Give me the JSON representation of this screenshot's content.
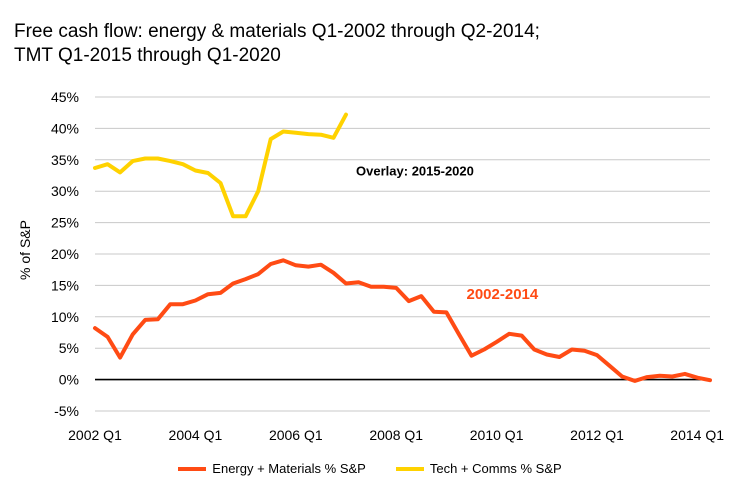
{
  "title_line1": "Free cash flow: energy & materials Q1-2002 through Q2-2014;",
  "title_line2": "TMT Q1-2015 through Q1-2020",
  "chart_data": {
    "type": "line",
    "ylabel": "% of S&P",
    "ylim": [
      -5,
      45
    ],
    "yticks": [
      -5,
      0,
      5,
      10,
      15,
      20,
      25,
      30,
      35,
      40,
      45
    ],
    "ytick_labels": [
      "-5%",
      "0%",
      "5%",
      "10%",
      "15%",
      "20%",
      "25%",
      "30%",
      "35%",
      "40%",
      "45%"
    ],
    "xlim": [
      2002.0,
      2014.25
    ],
    "xticks": [
      2002.0,
      2004.0,
      2006.0,
      2008.0,
      2010.0,
      2012.0,
      2014.0
    ],
    "xtick_labels": [
      "2002 Q1",
      "2004 Q1",
      "2006 Q1",
      "2008 Q1",
      "2010 Q1",
      "2012 Q1",
      "2014 Q1"
    ],
    "grid": "horizontal",
    "legend_position": "bottom",
    "annotations": [
      {
        "text": "Overlay: 2015-2020",
        "x": 2007.2,
        "y": 32.5,
        "color": "#000000"
      },
      {
        "text": "2002-2014",
        "x": 2009.4,
        "y": 12.8,
        "color": "#ff4b14"
      }
    ],
    "series": [
      {
        "name": "Energy + Materials % S&P",
        "color": "#ff4b14",
        "x": [
          2002.0,
          2002.25,
          2002.5,
          2002.75,
          2003.0,
          2003.25,
          2003.5,
          2003.75,
          2004.0,
          2004.25,
          2004.5,
          2004.75,
          2005.0,
          2005.25,
          2005.5,
          2005.75,
          2006.0,
          2006.25,
          2006.5,
          2006.75,
          2007.0,
          2007.25,
          2007.5,
          2007.75,
          2008.0,
          2008.25,
          2008.5,
          2008.75,
          2009.0,
          2009.25,
          2009.5,
          2009.75,
          2010.0,
          2010.25,
          2010.5,
          2010.75,
          2011.0,
          2011.25,
          2011.5,
          2011.75,
          2012.0,
          2012.25,
          2012.5,
          2012.75,
          2013.0,
          2013.25,
          2013.5,
          2013.75,
          2014.0,
          2014.25
        ],
        "y": [
          8.2,
          6.8,
          3.5,
          7.2,
          9.5,
          9.6,
          12.0,
          12.0,
          12.6,
          13.6,
          13.8,
          15.3,
          16.0,
          16.8,
          18.4,
          19.0,
          18.2,
          18.0,
          18.3,
          17.0,
          15.3,
          15.5,
          14.8,
          14.8,
          14.6,
          12.5,
          13.3,
          10.8,
          10.7,
          7.2,
          3.8,
          4.8,
          6.0,
          7.3,
          7.0,
          4.8,
          4.0,
          3.6,
          4.8,
          4.6,
          3.9,
          2.2,
          0.5,
          -0.2,
          0.4,
          0.6,
          0.5,
          0.9,
          0.3,
          -0.1
        ]
      },
      {
        "name": "Tech + Comms % S&P",
        "color": "#ffd200",
        "x": [
          2002.0,
          2002.25,
          2002.5,
          2002.75,
          2003.0,
          2003.25,
          2003.5,
          2003.75,
          2004.0,
          2004.25,
          2004.5,
          2004.75,
          2005.0,
          2005.25,
          2005.5,
          2005.75,
          2006.0,
          2006.25,
          2006.5,
          2006.75,
          2007.0
        ],
        "y": [
          33.7,
          34.3,
          33.0,
          34.8,
          35.2,
          35.2,
          34.8,
          34.3,
          33.3,
          32.9,
          31.3,
          26.0,
          26.0,
          30.0,
          38.3,
          39.5,
          39.3,
          39.1,
          39.0,
          38.5,
          42.2
        ]
      }
    ]
  }
}
